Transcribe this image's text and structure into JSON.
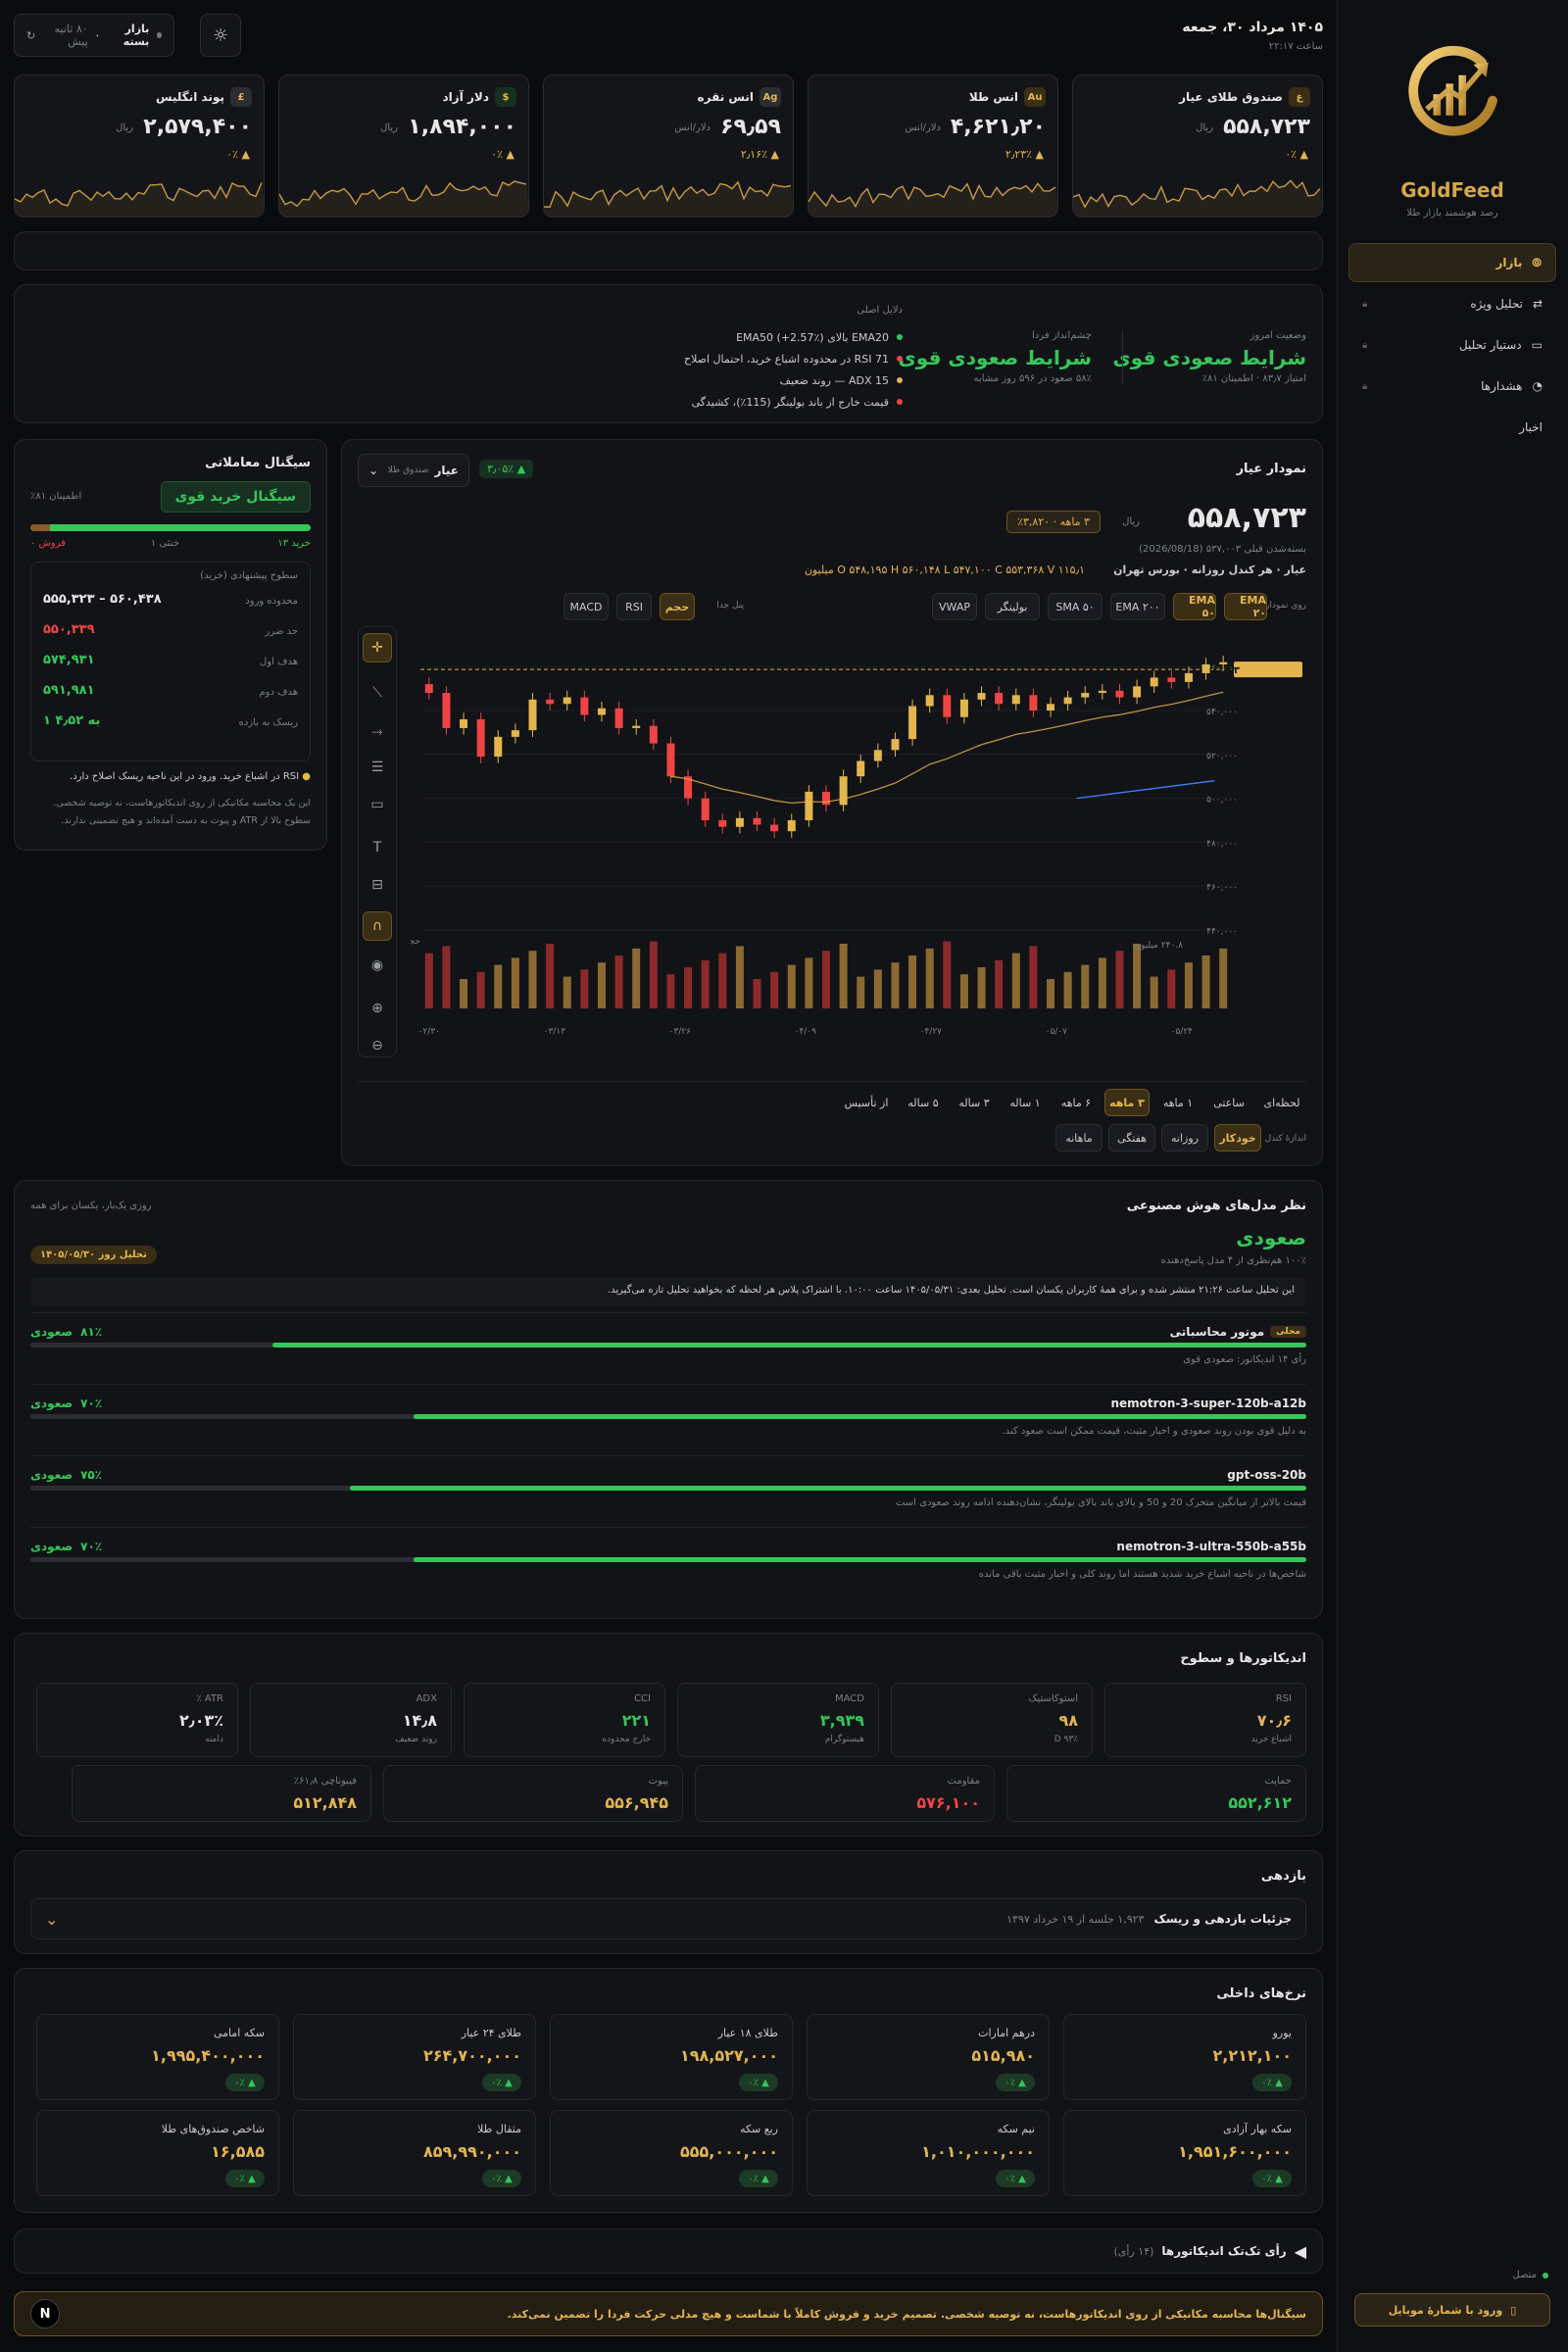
{
  "sidebar": {
    "brand": "GoldFeed",
    "tagline": "رصد هوشمند بازار طلا",
    "items": [
      {
        "label": "بازار",
        "active": true
      },
      {
        "label": "تحلیل ویژه"
      },
      {
        "label": "دستیار تحلیل"
      },
      {
        "label": "هشدارها"
      },
      {
        "label": "اخبار"
      }
    ],
    "status": "متصل",
    "login": "ورود با شمارهٔ موبایل"
  },
  "header": {
    "date": "۱۴۰۵ مرداد ۳۰، جمعه",
    "time": "ساعت ۲۲:۱۷",
    "market_status": "بازار بسته",
    "updated": "۸۰ ثانیه پیش"
  },
  "tickers": [
    {
      "icon": "ع",
      "name": "صندوق طلای عیار",
      "price": "۵۵۸,۷۲۳",
      "unit": "ریال",
      "change": "▲ ۰٪"
    },
    {
      "icon": "Au",
      "name": "انس طلا",
      "price": "۴,۶۲۱٫۲۰",
      "unit": "دلار/انس",
      "change": "▲ ۲٫۲۳٪"
    },
    {
      "icon": "Ag",
      "name": "انس نقره",
      "price": "۶۹٫۵۹",
      "unit": "دلار/انس",
      "change": "▲ ۲٫۱۶٪"
    },
    {
      "icon": "$",
      "name": "دلار آزاد",
      "price": "۱,۸۹۴,۰۰۰",
      "unit": "ریال",
      "change": "▲ ۰٪"
    },
    {
      "icon": "£",
      "name": "پوند انگلیس",
      "price": "۲,۵۷۹,۴۰۰",
      "unit": "ریال",
      "change": "▲ ۰٪"
    }
  ],
  "summary": {
    "today_label": "وضعیت امروز",
    "today": "شرایط صعودی قوی",
    "today_meta": "امتیاز ۸۳٫۷ · اطمینان ۸۱٪",
    "outlook_label": "چشم‌انداز فردا",
    "outlook": "شرایط صعودی قوی",
    "outlook_meta": "۵۸٪ صعود در ۵۹۶ روز مشابه",
    "reasons_title": "دلایل اصلی",
    "reasons": [
      "EMA20 بالای EMA50 (+2.57٪)",
      "RSI 71 در محدوده اشباع خرید، احتمال اصلاح",
      "ADX 15 — روند ضعیف",
      "قیمت خارج از باند بولینگر (115٪)، کشیدگی"
    ]
  },
  "chart": {
    "title": "نمودار عیار",
    "selector": "عیار",
    "selector_sub": "صندوق طلا",
    "change": "▲ ۳٫۰۵٪",
    "price": "۵۵۸,۷۲۳",
    "unit": "ریال",
    "period_change": "۳ ماهه · ۳,۸۲۰٪",
    "prev_close": "بسته‌شدن قبلی ۵۳۷,۰۰۳ (2026/08/18)",
    "meta": "عیار · هر کندل روزانه · بورس تهران",
    "ohlc": "O ۵۴۸,۱۹۵   H ۵۶۰,۱۴۸   L ۵۴۷,۱۰۰   C ۵۵۳,۳۶۸   V ۱۱۵٫۱ میلیون",
    "ind_label": "روی نمودار",
    "indicators": [
      "EMA ۲۰",
      "EMA ۵۰",
      "EMA ۲۰۰",
      "SMA ۵۰",
      "بولینگر",
      "VWAP"
    ],
    "pane_label": "پنل جدا",
    "panes": [
      "حجم",
      "RSI",
      "MACD"
    ],
    "price_tag": "۵۵۸,۷۲۳",
    "y_ticks": [
      "۵۶۰,۰۰۰",
      "۵۴۰,۰۰۰",
      "۵۲۰,۰۰۰",
      "۵۰۰,۰۰۰",
      "۴۸۰,۰۰۰",
      "۴۶۰,۰۰۰",
      "۴۴۰,۰۰۰"
    ],
    "vol_label": "حجم",
    "vol_max": "۲۴۰.۸ میلیون",
    "x_ticks": [
      "۰۲/۳۰",
      "۰۳/۱۳",
      "۰۳/۲۶",
      "۰۴/۰۹",
      "۰۴/۲۷",
      "۰۵/۰۷",
      "۰۵/۲۴"
    ],
    "ranges": [
      "لحظه‌ای",
      "ساعتی",
      "۱ ماهه",
      "۳ ماهه",
      "۶ ماهه",
      "۱ ساله",
      "۳ ساله",
      "۵ ساله",
      "از تأسیس"
    ],
    "candle_label": "اندازهٔ کندل",
    "candles": [
      "خودکار",
      "روزانه",
      "هفتگی",
      "ماهانه"
    ]
  },
  "signal": {
    "title": "سیگنال معاملاتی",
    "badge": "سیگنال خرید قوی",
    "confidence": "اطمینان ۸۱٪",
    "buy": "خرید ۱۳",
    "neutral": "خنثی ۱",
    "sell": "فروش ۰",
    "levels_title": "سطوح پیشنهادی (خرید)",
    "levels": [
      {
        "label": "محدوده ورود",
        "value": "۵۵۵,۳۲۳ – ۵۶۰,۴۳۸",
        "c": "w"
      },
      {
        "label": "حد ضرر",
        "value": "۵۵۰,۳۳۹",
        "c": "r"
      },
      {
        "label": "هدف اول",
        "value": "۵۷۴,۹۳۱",
        "c": "g"
      },
      {
        "label": "هدف دوم",
        "value": "۵۹۱,۹۸۱",
        "c": "g"
      },
      {
        "label": "ریسک به بازده",
        "value": "۱ به ۴٫۵۲",
        "c": "g"
      }
    ],
    "note": "RSI در اشباع خرید. ورود در این ناحیه ریسک اصلاح دارد.",
    "disclaimer": "این یک محاسبه مکانیکی از روی اندیکاتورهاست، نه توصیه شخصی. سطوح بالا از ATR و پیوت به دست آمده‌اند و هیچ تضمینی ندارند."
  },
  "ai": {
    "title": "نظر مدل‌های هوش مصنوعی",
    "same": "روزی یک‌بار، یکسان برای همه",
    "verdict": "صعودی",
    "agreement": "۱۰۰٪ هم‌نظری از ۴ مدل پاسخ‌دهنده",
    "date_badge": "تحلیل روز ۱۴۰۵/۰۵/۳۰",
    "notice": "این تحلیل ساعت ۲۱:۲۶ منتشر شده و برای همهٔ کاربران یکسان است. تحلیل بعدی: ۱۴۰۵/۰۵/۳۱ ساعت ۱۰:۰۰. با اشتراک پلاس هر لحظه که بخواهید تحلیل تازه می‌گیرید.",
    "models": [
      {
        "name": "موتور محاسباتی",
        "tag": "محلی",
        "verdict": "صعودی",
        "pct": "۸۱٪",
        "p": 81,
        "note": "رأی ۱۴ اندیکاتور: صعودی قوی"
      },
      {
        "name": "nemotron-3-super-120b-a12b",
        "verdict": "صعودی",
        "pct": "۷۰٪",
        "p": 70,
        "note": "به دلیل قوی بودن روند صعودی و اخبار مثبت، قیمت ممکن است صعود کند."
      },
      {
        "name": "gpt-oss-20b",
        "verdict": "صعودی",
        "pct": "۷۵٪",
        "p": 75,
        "note": "قیمت بالاتر از میانگین متحرک 20 و 50 و بالای باند بالای بولینگر، نشان‌دهنده ادامه روند صعودی است"
      },
      {
        "name": "nemotron-3-ultra-550b-a55b",
        "verdict": "صعودی",
        "pct": "۷۰٪",
        "p": 70,
        "note": "شاخص‌ها در ناحیه اشباع خرید شدید هستند اما روند کلی و اخبار مثبت باقی مانده"
      }
    ]
  },
  "indicators": {
    "title": "اندیکاتورها و سطوح",
    "row1": [
      {
        "t": "RSI",
        "v": "۷۰٫۶",
        "s": "اشباع خرید",
        "c": "gold"
      },
      {
        "t": "استوکاستیک",
        "v": "۹۸",
        "s": "D ۹۳٪",
        "c": "gold"
      },
      {
        "t": "MACD",
        "v": "۳,۹۳۹",
        "s": "هیستوگرام",
        "c": "green"
      },
      {
        "t": "CCI",
        "v": "۲۲۱",
        "s": "خارج محدوده",
        "c": "green"
      },
      {
        "t": "ADX",
        "v": "۱۴٫۸",
        "s": "روند ضعیف",
        "c": "w"
      },
      {
        "t": "ATR ٪",
        "v": "۲٫۰۳٪",
        "s": "دامنه",
        "c": "w"
      }
    ],
    "row2": [
      {
        "t": "حمایت",
        "v": "۵۵۲,۶۱۲",
        "c": "green"
      },
      {
        "t": "مقاومت",
        "v": "۵۷۶,۱۰۰",
        "c": "red"
      },
      {
        "t": "پیوت",
        "v": "۵۵۶,۹۴۵",
        "c": "gold"
      },
      {
        "t": "فیبوناچی ۶۱٫۸٪",
        "v": "۵۱۲,۸۴۸",
        "c": "gold"
      }
    ]
  },
  "returns": {
    "title": "بازدهی",
    "detail": "جزئیات بازدهی و ریسک",
    "meta": "۱,۹۲۳ جلسه از ۱۹ خرداد ۱۳۹۷"
  },
  "rates": {
    "title": "نرخ‌های داخلی",
    "items": [
      {
        "t": "یورو",
        "v": "۲,۲۱۲,۱۰۰",
        "c": "▲ ۰٪"
      },
      {
        "t": "درهم امارات",
        "v": "۵۱۵,۹۸۰",
        "c": "▲ ۰٪"
      },
      {
        "t": "طلای ۱۸ عیار",
        "v": "۱۹۸,۵۲۷,۰۰۰",
        "c": "▲ ۰٪"
      },
      {
        "t": "طلای ۲۴ عیار",
        "v": "۲۶۴,۷۰۰,۰۰۰",
        "c": "▲ ۰٪"
      },
      {
        "t": "سکه امامی",
        "v": "۱,۹۹۵,۴۰۰,۰۰۰",
        "c": "▲ ۰٪"
      },
      {
        "t": "سکه بهار آزادی",
        "v": "۱,۹۵۱,۶۰۰,۰۰۰",
        "c": "▲ ۰٪"
      },
      {
        "t": "نیم سکه",
        "v": "۱,۰۱۰,۰۰۰,۰۰۰",
        "c": "▲ ۰٪"
      },
      {
        "t": "ربع سکه",
        "v": "۵۵۵,۰۰۰,۰۰۰",
        "c": "▲ ۰٪"
      },
      {
        "t": "مثقال طلا",
        "v": "۸۵۹,۹۹۰,۰۰۰",
        "c": "▲ ۰٪"
      },
      {
        "t": "شاخص صندوق‌های طلا",
        "v": "۱۶,۵۸۵",
        "c": "▲ ۰٪"
      }
    ]
  },
  "votes": {
    "title": "رأی تک‌تک اندیکاتورها",
    "count": "(۱۴ رأی)"
  },
  "footer": {
    "warning": "سیگنال‌ها محاسبه مکانیکی از روی اندیکاتورهاست، نه توصیه شخصی. تصمیم خرید و فروش کاملاً با شماست و هیچ مدلی حرکت فردا را تضمین نمی‌کند."
  },
  "colors": {
    "gold": "#e3b54e",
    "green": "#34c759",
    "red": "#ef4444",
    "bg": "#0b0c0e"
  }
}
